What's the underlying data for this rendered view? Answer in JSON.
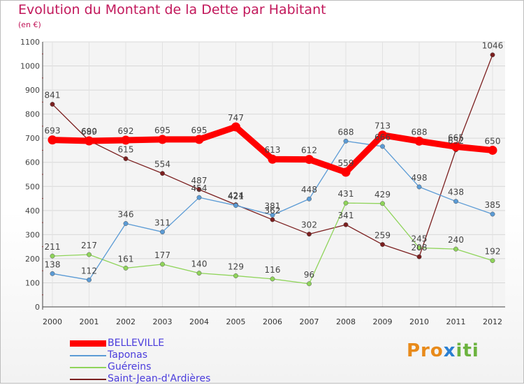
{
  "title": "Evolution du Montant de la Dette par Habitant",
  "subtitle": "(en €)",
  "logo": {
    "part1": "Pro",
    "part2": "x",
    "part3": "iti"
  },
  "chart_data": {
    "type": "line",
    "x": [
      "2000",
      "2001",
      "2002",
      "2003",
      "2004",
      "2005",
      "2006",
      "2007",
      "2008",
      "2009",
      "2010",
      "2011",
      "2012"
    ],
    "ylim": [
      0,
      1100
    ],
    "yticks": [
      0,
      100,
      200,
      300,
      400,
      500,
      600,
      700,
      800,
      900,
      1000,
      1100
    ],
    "grid": true,
    "legend_position": "bottom-left",
    "series": [
      {
        "name": "BELLEVILLE",
        "color": "#ff0000",
        "values": [
          693,
          689,
          692,
          695,
          695,
          747,
          613,
          612,
          559,
          713,
          688,
          665,
          650
        ]
      },
      {
        "name": "Taponas",
        "color": "#5b9bd5",
        "values": [
          138,
          112,
          346,
          311,
          454,
          421,
          381,
          448,
          688,
          666,
          498,
          438,
          385
        ]
      },
      {
        "name": "Guéreins",
        "color": "#8fd45a",
        "values": [
          211,
          217,
          161,
          177,
          140,
          129,
          116,
          96,
          431,
          429,
          245,
          240,
          192
        ]
      },
      {
        "name": "Saint-Jean-d'Ardières",
        "color": "#7b1f1f",
        "values": [
          841,
          690,
          615,
          554,
          487,
          424,
          362,
          302,
          341,
          259,
          208,
          652,
          1046
        ]
      }
    ]
  }
}
